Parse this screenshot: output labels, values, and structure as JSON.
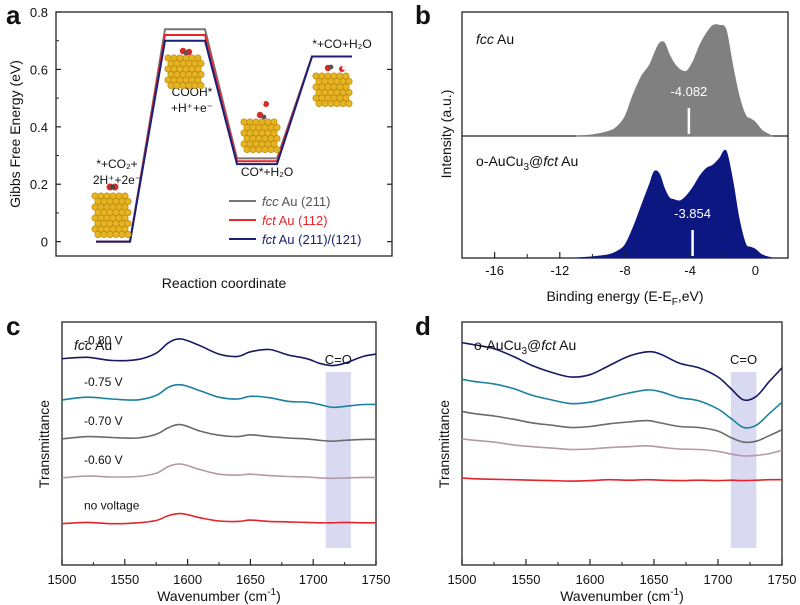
{
  "chart_data": [
    {
      "panel": "a",
      "type": "line",
      "xlabel": "Reaction coordinate",
      "ylabel": "Gibbs Free Energy (eV)",
      "ylim": [
        -0.05,
        0.8
      ],
      "yticks": [
        "0",
        "0.2",
        "0.4",
        "0.6",
        "0.8"
      ],
      "steps": [
        {
          "label_lines": [
            "*+CO₂+",
            "2H⁺+2e⁻"
          ]
        },
        {
          "label_lines": [
            "COOH*",
            "+H⁺+e⁻"
          ]
        },
        {
          "label_lines": [
            "CO*+H₂O"
          ]
        },
        {
          "label_lines": [
            "*+CO+H₂O"
          ]
        }
      ],
      "series": [
        {
          "name": "fcc Au (211)",
          "name_italic": "fcc",
          "name_rest": " Au (211)",
          "color": "#777777",
          "values": [
            0,
            0.74,
            0.29,
            0.645
          ]
        },
        {
          "name": "fct Au (112)",
          "name_italic": "fct",
          "name_rest": " Au (112)",
          "color": "#e8262a",
          "values": [
            0,
            0.72,
            0.28,
            0.645
          ]
        },
        {
          "name": "fct Au (211)/(121)",
          "name_italic": "fct",
          "name_rest": " Au (211)/(121)",
          "color": "#1a1f78",
          "values": [
            0,
            0.7,
            0.27,
            0.645
          ]
        }
      ],
      "legend_position": "bottom-right"
    },
    {
      "panel": "b",
      "type": "area",
      "xlabel": "Binding energy (E-E",
      "xlabel_sub": "F",
      "xlabel_end": ",eV)",
      "ylabel": "Intensity (a.u.)",
      "xlim": [
        -18,
        2
      ],
      "xticks": [
        -16,
        -12,
        -8,
        -4,
        0
      ],
      "series": [
        {
          "name": "fcc Au",
          "name_italic": "fcc",
          "name_rest": " Au",
          "color": "#808080",
          "d_band_center": -4.082,
          "d_band_label": "-4.082",
          "x": [
            -11,
            -10,
            -9,
            -8.5,
            -8,
            -7.5,
            -7,
            -6.5,
            -6.2,
            -5.9,
            -5.6,
            -5.3,
            -5,
            -4.6,
            -4.2,
            -3.8,
            -3.4,
            -3,
            -2.6,
            -2.2,
            -1.8,
            -1.4,
            -1,
            -0.6,
            -0.3,
            0,
            0.4,
            1
          ],
          "y": [
            0,
            0.01,
            0.04,
            0.08,
            0.17,
            0.36,
            0.52,
            0.62,
            0.72,
            0.81,
            0.82,
            0.72,
            0.64,
            0.58,
            0.57,
            0.66,
            0.8,
            0.9,
            0.97,
            0.97,
            0.93,
            0.62,
            0.35,
            0.18,
            0.15,
            0.12,
            0.05,
            0
          ]
        },
        {
          "name_pre": "o-AuCu",
          "name_sub": "3",
          "name_mid": "@",
          "name_italic": "fct",
          "name_rest": " Au",
          "color": "#0c1782",
          "d_band_center": -3.854,
          "d_band_label": "-3.854",
          "x": [
            -11,
            -10,
            -9,
            -8.5,
            -8,
            -7.5,
            -7,
            -6.5,
            -6.2,
            -5.9,
            -5.6,
            -5.3,
            -5,
            -4.6,
            -4.2,
            -3.8,
            -3.4,
            -3,
            -2.6,
            -2.2,
            -1.8,
            -1.4,
            -1,
            -0.6,
            -0.3,
            0,
            0.4,
            1
          ],
          "y": [
            0,
            0.01,
            0.03,
            0.06,
            0.12,
            0.28,
            0.48,
            0.68,
            0.8,
            0.78,
            0.65,
            0.56,
            0.54,
            0.53,
            0.58,
            0.66,
            0.76,
            0.83,
            0.86,
            0.92,
            0.99,
            0.72,
            0.36,
            0.13,
            0.1,
            0.08,
            0.03,
            0
          ]
        }
      ]
    },
    {
      "panel": "c",
      "type": "line",
      "title_italic": "fcc",
      "title_rest": " Au",
      "xlabel": "Wavenumber (cm",
      "xlabel_sup": "-1",
      "xlabel_end": ")",
      "ylabel": "Transmittance",
      "xlim": [
        1500,
        1750
      ],
      "xticks": [
        1500,
        1550,
        1600,
        1650,
        1700,
        1750
      ],
      "band_label": "C=O",
      "band_range": [
        1710,
        1730
      ],
      "series": [
        {
          "name": "-0.80 V",
          "color": "#151a63",
          "x": [
            1500,
            1520,
            1540,
            1560,
            1575,
            1585,
            1595,
            1610,
            1625,
            1640,
            1650,
            1665,
            1680,
            1695,
            1705,
            1715,
            1725,
            1740,
            1750
          ],
          "y": [
            4.5,
            4.53,
            4.46,
            4.48,
            4.62,
            4.85,
            4.93,
            4.78,
            4.6,
            4.55,
            4.65,
            4.7,
            4.58,
            4.5,
            4.4,
            4.35,
            4.4,
            4.55,
            4.6
          ]
        },
        {
          "name": "-0.75 V",
          "color": "#1c809e",
          "x": [
            1500,
            1520,
            1540,
            1560,
            1575,
            1585,
            1595,
            1610,
            1625,
            1640,
            1650,
            1665,
            1680,
            1695,
            1705,
            1715,
            1725,
            1740,
            1750
          ],
          "y": [
            3.6,
            3.66,
            3.62,
            3.6,
            3.7,
            3.88,
            3.93,
            3.8,
            3.66,
            3.62,
            3.68,
            3.65,
            3.57,
            3.55,
            3.5,
            3.44,
            3.46,
            3.5,
            3.5
          ]
        },
        {
          "name": "-0.70 V",
          "color": "#6a6a6a",
          "x": [
            1500,
            1520,
            1540,
            1560,
            1575,
            1585,
            1595,
            1610,
            1625,
            1640,
            1650,
            1665,
            1680,
            1695,
            1705,
            1715,
            1725,
            1740,
            1750
          ],
          "y": [
            2.75,
            2.8,
            2.78,
            2.77,
            2.85,
            3.0,
            3.06,
            2.92,
            2.83,
            2.8,
            2.84,
            2.8,
            2.77,
            2.75,
            2.72,
            2.7,
            2.72,
            2.74,
            2.74
          ]
        },
        {
          "name": "-0.60 V",
          "color": "#b39aa9",
          "x": [
            1500,
            1520,
            1540,
            1560,
            1575,
            1585,
            1595,
            1610,
            1625,
            1640,
            1650,
            1665,
            1680,
            1695,
            1705,
            1715,
            1725,
            1740,
            1750
          ],
          "y": [
            1.9,
            1.94,
            1.92,
            1.93,
            2.0,
            2.15,
            2.2,
            2.08,
            1.98,
            1.96,
            1.98,
            1.95,
            1.93,
            1.92,
            1.9,
            1.89,
            1.9,
            1.91,
            1.91
          ]
        },
        {
          "name": "no voltage",
          "color": "#e3242b",
          "x": [
            1500,
            1520,
            1540,
            1560,
            1575,
            1585,
            1595,
            1610,
            1625,
            1640,
            1650,
            1665,
            1680,
            1695,
            1705,
            1715,
            1725,
            1740,
            1750
          ],
          "y": [
            0.9,
            0.93,
            0.9,
            0.92,
            0.97,
            1.08,
            1.12,
            1.03,
            0.96,
            0.95,
            0.98,
            0.95,
            0.94,
            0.93,
            0.92,
            0.92,
            0.93,
            0.92,
            0.92
          ]
        }
      ]
    },
    {
      "panel": "d",
      "type": "line",
      "title_pre": "o-AuCu",
      "title_sub": "3",
      "title_mid": "@",
      "title_italic": "fct",
      "title_rest": " Au",
      "xlabel": "Wavenumber (cm",
      "xlabel_sup": "-1",
      "xlabel_end": ")",
      "ylabel": "Transmittance",
      "xlim": [
        1500,
        1750
      ],
      "xticks": [
        1500,
        1550,
        1600,
        1650,
        1700,
        1750
      ],
      "band_label": "C=O",
      "band_range": [
        1710,
        1730
      ],
      "series": [
        {
          "color": "#151a63",
          "x": [
            1500,
            1510,
            1525,
            1540,
            1555,
            1570,
            1585,
            1600,
            1615,
            1630,
            1645,
            1655,
            1670,
            1685,
            1700,
            1710,
            1720,
            1730,
            1740,
            1750
          ],
          "y": [
            4.85,
            4.8,
            4.72,
            4.55,
            4.35,
            4.2,
            4.1,
            4.15,
            4.35,
            4.55,
            4.65,
            4.6,
            4.4,
            4.3,
            4.1,
            3.85,
            3.6,
            3.68,
            4.0,
            4.3
          ]
        },
        {
          "color": "#1c809e",
          "x": [
            1500,
            1510,
            1525,
            1540,
            1555,
            1570,
            1585,
            1600,
            1615,
            1630,
            1645,
            1655,
            1670,
            1685,
            1700,
            1710,
            1720,
            1730,
            1740,
            1750
          ],
          "y": [
            4.05,
            4.0,
            3.95,
            3.85,
            3.7,
            3.6,
            3.52,
            3.55,
            3.65,
            3.75,
            3.82,
            3.78,
            3.65,
            3.58,
            3.4,
            3.2,
            3.0,
            3.05,
            3.3,
            3.55
          ]
        },
        {
          "color": "#6a6a6a",
          "x": [
            1500,
            1510,
            1525,
            1540,
            1555,
            1570,
            1585,
            1600,
            1615,
            1630,
            1645,
            1655,
            1670,
            1685,
            1700,
            1710,
            1720,
            1730,
            1740,
            1750
          ],
          "y": [
            3.35,
            3.3,
            3.25,
            3.18,
            3.1,
            3.05,
            3.0,
            3.02,
            3.08,
            3.12,
            3.15,
            3.1,
            3.02,
            3.0,
            2.92,
            2.78,
            2.68,
            2.7,
            2.82,
            2.95
          ]
        },
        {
          "color": "#b39aa9",
          "x": [
            1500,
            1510,
            1525,
            1540,
            1555,
            1570,
            1585,
            1600,
            1615,
            1630,
            1645,
            1655,
            1670,
            1685,
            1700,
            1710,
            1720,
            1730,
            1740,
            1750
          ],
          "y": [
            2.75,
            2.72,
            2.68,
            2.62,
            2.58,
            2.55,
            2.52,
            2.53,
            2.56,
            2.58,
            2.6,
            2.57,
            2.53,
            2.52,
            2.48,
            2.42,
            2.38,
            2.39,
            2.43,
            2.5
          ]
        },
        {
          "color": "#e3242b",
          "x": [
            1500,
            1510,
            1525,
            1540,
            1555,
            1570,
            1585,
            1600,
            1615,
            1630,
            1645,
            1655,
            1670,
            1685,
            1700,
            1710,
            1720,
            1730,
            1740,
            1750
          ],
          "y": [
            1.9,
            1.88,
            1.87,
            1.86,
            1.85,
            1.84,
            1.83,
            1.84,
            1.86,
            1.85,
            1.86,
            1.85,
            1.84,
            1.85,
            1.84,
            1.85,
            1.84,
            1.85,
            1.86,
            1.86
          ]
        }
      ]
    }
  ],
  "panel_letters": [
    "a",
    "b",
    "c",
    "d"
  ]
}
